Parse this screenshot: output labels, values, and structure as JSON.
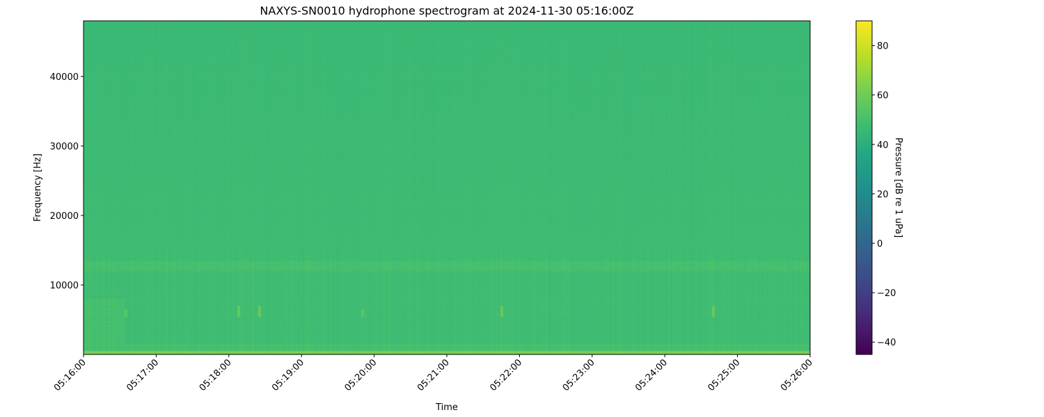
{
  "chart_data": {
    "type": "heatmap",
    "title": "NAXYS-SN0010 hydrophone spectrogram at 2024-11-30 05:16:00Z",
    "xlabel": "Time",
    "ylabel": "Frequency [Hz]",
    "x_ticks": [
      "05:16:00",
      "05:17:00",
      "05:18:00",
      "05:19:00",
      "05:20:00",
      "05:21:00",
      "05:22:00",
      "05:23:00",
      "05:24:00",
      "05:25:00",
      "05:26:00"
    ],
    "xlim": [
      "05:16:00",
      "05:26:00"
    ],
    "y_ticks": [
      10000,
      20000,
      30000,
      40000
    ],
    "ylim": [
      0,
      48000
    ],
    "colormap": "viridis",
    "colorbar": {
      "label": "Pressure [dB re 1 uPa]",
      "range": [
        -45,
        90
      ],
      "ticks": [
        -40,
        -20,
        0,
        20,
        40,
        60,
        80
      ]
    },
    "band_levels_db": [
      {
        "freq_hz": [
          0,
          500
        ],
        "level": 62
      },
      {
        "freq_hz": [
          500,
          1500
        ],
        "level": 50
      },
      {
        "freq_hz": [
          1500,
          12000
        ],
        "level": 48
      },
      {
        "freq_hz": [
          12000,
          13500
        ],
        "level": 50
      },
      {
        "freq_hz": [
          13500,
          48000
        ],
        "level": 47
      }
    ],
    "transients": [
      {
        "time": "05:16:35",
        "freq_hz": [
          5500,
          6500
        ],
        "level": 55
      },
      {
        "time": "05:18:08",
        "freq_hz": [
          5500,
          7000
        ],
        "level": 58
      },
      {
        "time": "05:18:25",
        "freq_hz": [
          5500,
          7000
        ],
        "level": 58
      },
      {
        "time": "05:19:50",
        "freq_hz": [
          5500,
          6500
        ],
        "level": 55
      },
      {
        "time": "05:21:45",
        "freq_hz": [
          5500,
          7000
        ],
        "level": 58
      },
      {
        "time": "05:24:40",
        "freq_hz": [
          5500,
          7000
        ],
        "level": 58
      }
    ]
  }
}
